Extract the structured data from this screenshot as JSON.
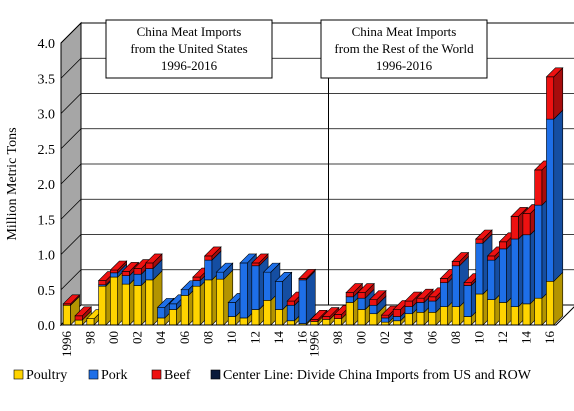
{
  "chart_data": {
    "type": "bar",
    "stacked": true,
    "ylabel": "Million Metric Tons",
    "ylim": [
      0,
      4.0
    ],
    "yticks": [
      "0.0",
      "0.5",
      "1.0",
      "1.5",
      "2.0",
      "2.5",
      "3.0",
      "3.5",
      "4.0"
    ],
    "panels": [
      {
        "title_lines": [
          "China Meat Imports",
          "from the United States",
          "1996-2016"
        ],
        "x_start_year": 1996,
        "tick_labels": [
          "1996",
          "98",
          "00",
          "02",
          "04",
          "06",
          "08",
          "10",
          "12",
          "14",
          "16"
        ]
      },
      {
        "title_lines": [
          "China Meat Imports",
          "from the Rest of the World",
          "1996-2016"
        ],
        "x_start_year": 1996,
        "tick_labels": [
          "1996",
          "98",
          "00",
          "02",
          "04",
          "06",
          "08",
          "10",
          "12",
          "14",
          "16"
        ]
      }
    ],
    "series": [
      {
        "name": "Poultry",
        "color": "#ffd400",
        "us": [
          0.28,
          0.07,
          0.09,
          0.55,
          0.68,
          0.58,
          0.56,
          0.64,
          0.1,
          0.22,
          0.42,
          0.55,
          0.64,
          0.65,
          0.12,
          0.1,
          0.22,
          0.35,
          0.22,
          0.06,
          0.02
        ],
        "row": [
          0.05,
          0.08,
          0.09,
          0.32,
          0.22,
          0.16,
          0.04,
          0.06,
          0.16,
          0.18,
          0.18,
          0.26,
          0.26,
          0.12,
          0.44,
          0.36,
          0.32,
          0.26,
          0.3,
          0.38,
          0.62
        ]
      },
      {
        "name": "Pork",
        "color": "#1e6fe8",
        "us": [
          0.0,
          0.0,
          0.0,
          0.02,
          0.06,
          0.12,
          0.16,
          0.16,
          0.15,
          0.08,
          0.08,
          0.08,
          0.28,
          0.1,
          0.2,
          0.78,
          0.62,
          0.4,
          0.4,
          0.22,
          0.62
        ],
        "row": [
          0.0,
          0.0,
          0.0,
          0.08,
          0.16,
          0.12,
          0.06,
          0.06,
          0.1,
          0.14,
          0.16,
          0.34,
          0.58,
          0.44,
          0.72,
          0.56,
          0.76,
          0.96,
          0.98,
          1.32,
          2.3
        ]
      },
      {
        "name": "Beef",
        "color": "#ee1111",
        "us": [
          0.02,
          0.06,
          0.0,
          0.06,
          0.04,
          0.06,
          0.08,
          0.08,
          0.0,
          0.0,
          0.0,
          0.05,
          0.06,
          0.0,
          0.0,
          0.0,
          0.04,
          0.0,
          0.0,
          0.06,
          0.02
        ],
        "row": [
          0.03,
          0.04,
          0.06,
          0.06,
          0.08,
          0.08,
          0.04,
          0.1,
          0.08,
          0.06,
          0.06,
          0.06,
          0.06,
          0.04,
          0.06,
          0.06,
          0.1,
          0.32,
          0.3,
          0.5,
          0.6
        ]
      }
    ],
    "legend": {
      "items": [
        {
          "label": "Poultry",
          "color": "#ffd400"
        },
        {
          "label": "Pork",
          "color": "#1e6fe8"
        },
        {
          "label": "Beef",
          "color": "#ee1111"
        },
        {
          "label": "Center Line: Divide China Imports from US and ROW",
          "color": "#0a1a3a"
        }
      ],
      "placement": "bottom"
    },
    "grid": true,
    "colors": {
      "wall": "#a6a6a6",
      "floor": "#ffffff",
      "grid": "#000000"
    }
  }
}
